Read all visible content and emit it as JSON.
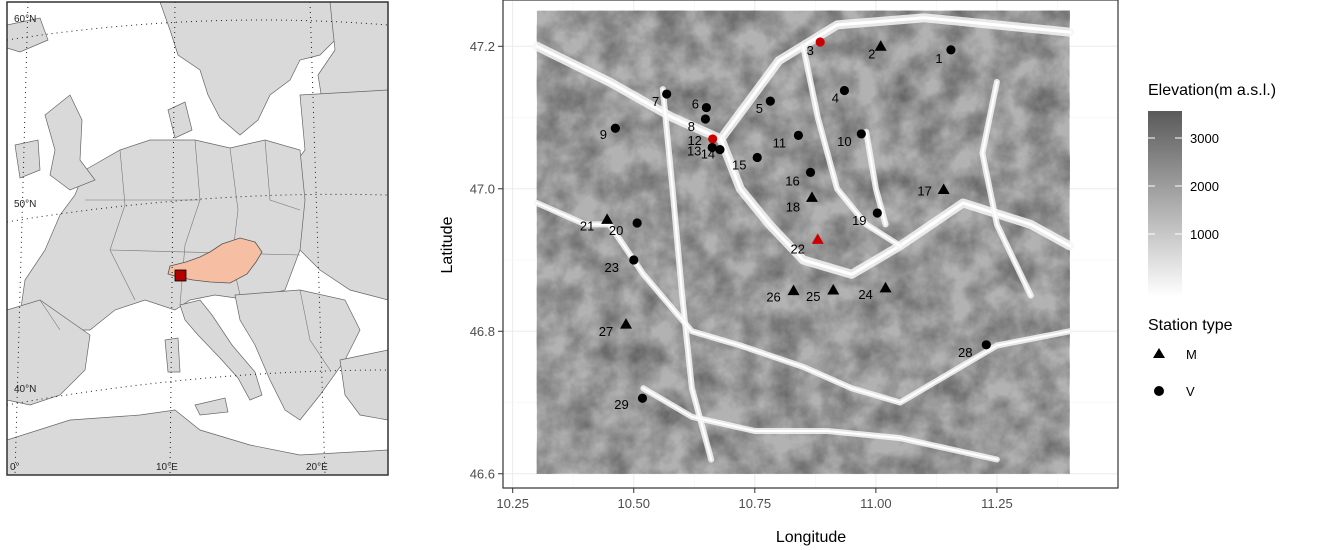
{
  "inset_map": {
    "graticule_labels": [
      "60°N",
      "50°N",
      "40°N",
      "0°",
      "10°E",
      "20°E"
    ],
    "highlight_color": "#f6bfa3",
    "marker_color": "#b30000"
  },
  "main_map": {
    "xlabel": "Longitude",
    "ylabel": "Latitude",
    "x_ticks": [
      "10.25",
      "10.50",
      "10.75",
      "11.00",
      "11.25"
    ],
    "y_ticks": [
      "46.6",
      "46.8",
      "47.0",
      "47.2"
    ],
    "xlim": [
      10.23,
      11.5
    ],
    "ylim": [
      46.58,
      47.265
    ],
    "raster_extent": {
      "lon": [
        10.3,
        11.4
      ],
      "lat": [
        46.6,
        47.25
      ]
    }
  },
  "legend": {
    "elevation_title": "Elevation(m a.s.l.)",
    "elevation_ticks": [
      "3000",
      "2000",
      "1000"
    ],
    "station_type_title": "Station type",
    "station_types": [
      {
        "label": "M",
        "shape": "triangle"
      },
      {
        "label": "V",
        "shape": "circle"
      }
    ]
  },
  "colors": {
    "highlight_station": "#cc0000",
    "station": "#000000"
  },
  "chart_data": {
    "type": "scatter",
    "x_field": "Longitude",
    "y_field": "Latitude",
    "stations": [
      {
        "id": "1",
        "lon": 11.155,
        "lat": 47.195,
        "type": "V",
        "highlight": false
      },
      {
        "id": "2",
        "lon": 11.01,
        "lat": 47.2,
        "type": "M",
        "highlight": false
      },
      {
        "id": "3",
        "lon": 10.885,
        "lat": 47.206,
        "type": "V",
        "highlight": true
      },
      {
        "id": "4",
        "lon": 10.935,
        "lat": 47.138,
        "type": "V",
        "highlight": false
      },
      {
        "id": "5",
        "lon": 10.782,
        "lat": 47.123,
        "type": "V",
        "highlight": false
      },
      {
        "id": "6",
        "lon": 10.65,
        "lat": 47.114,
        "type": "V",
        "highlight": false
      },
      {
        "id": "7",
        "lon": 10.568,
        "lat": 47.133,
        "type": "V",
        "highlight": false
      },
      {
        "id": "8",
        "lon": 10.648,
        "lat": 47.098,
        "type": "V",
        "highlight": false
      },
      {
        "id": "9",
        "lon": 10.462,
        "lat": 47.085,
        "type": "V",
        "highlight": false
      },
      {
        "id": "10",
        "lon": 10.97,
        "lat": 47.077,
        "type": "V",
        "highlight": false
      },
      {
        "id": "11",
        "lon": 10.84,
        "lat": 47.075,
        "type": "V",
        "highlight": false
      },
      {
        "id": "12",
        "lon": 10.663,
        "lat": 47.07,
        "type": "V",
        "highlight": true
      },
      {
        "id": "13",
        "lon": 10.662,
        "lat": 47.058,
        "type": "V",
        "highlight": false
      },
      {
        "id": "14",
        "lon": 10.678,
        "lat": 47.055,
        "type": "V",
        "highlight": false
      },
      {
        "id": "15",
        "lon": 10.755,
        "lat": 47.044,
        "type": "V",
        "highlight": false
      },
      {
        "id": "16",
        "lon": 10.865,
        "lat": 47.023,
        "type": "V",
        "highlight": false
      },
      {
        "id": "17",
        "lon": 11.14,
        "lat": 46.999,
        "type": "M",
        "highlight": false
      },
      {
        "id": "18",
        "lon": 10.868,
        "lat": 46.988,
        "type": "M",
        "highlight": false
      },
      {
        "id": "19",
        "lon": 11.003,
        "lat": 46.966,
        "type": "V",
        "highlight": false
      },
      {
        "id": "20",
        "lon": 10.507,
        "lat": 46.952,
        "type": "V",
        "highlight": false
      },
      {
        "id": "21",
        "lon": 10.445,
        "lat": 46.957,
        "type": "M",
        "highlight": false
      },
      {
        "id": "22",
        "lon": 10.88,
        "lat": 46.929,
        "type": "M",
        "highlight": true
      },
      {
        "id": "23",
        "lon": 10.5,
        "lat": 46.9,
        "type": "V",
        "highlight": false
      },
      {
        "id": "24",
        "lon": 11.02,
        "lat": 46.861,
        "type": "M",
        "highlight": false
      },
      {
        "id": "25",
        "lon": 10.912,
        "lat": 46.858,
        "type": "M",
        "highlight": false
      },
      {
        "id": "26",
        "lon": 10.83,
        "lat": 46.857,
        "type": "M",
        "highlight": false
      },
      {
        "id": "27",
        "lon": 10.484,
        "lat": 46.81,
        "type": "M",
        "highlight": false
      },
      {
        "id": "28",
        "lon": 11.228,
        "lat": 46.781,
        "type": "V",
        "highlight": false
      },
      {
        "id": "29",
        "lon": 10.518,
        "lat": 46.706,
        "type": "V",
        "highlight": false
      }
    ]
  }
}
